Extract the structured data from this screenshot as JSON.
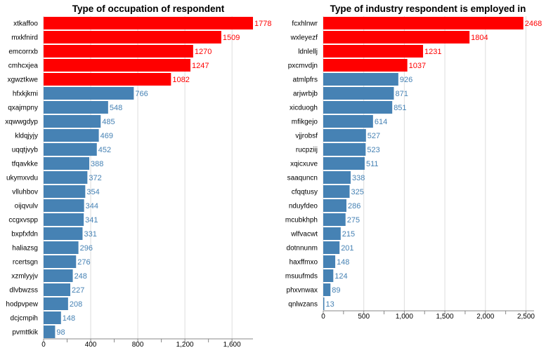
{
  "chart_data": [
    {
      "type": "bar",
      "orientation": "horizontal",
      "title": "Type of occupation of respondent",
      "categories": [
        "xtkaffoo",
        "mxkfnird",
        "emcorrxb",
        "cmhcxjea",
        "xgwztkwe",
        "hfxkjkmi",
        "qxajmpny",
        "xqwwgdyp",
        "kldqjyjy",
        "uqqtjvyb",
        "tfqavkke",
        "ukymxvdu",
        "vlluhbov",
        "oijqvulv",
        "ccgxvspp",
        "bxpfxfdn",
        "haliazsg",
        "rcertsgn",
        "xzmlyyjv",
        "dlvbwzss",
        "hodpvpew",
        "dcjcmpih",
        "pvmttkik"
      ],
      "values": [
        1778,
        1509,
        1270,
        1247,
        1082,
        766,
        548,
        485,
        469,
        452,
        388,
        372,
        354,
        344,
        341,
        331,
        296,
        276,
        248,
        227,
        208,
        148,
        98
      ],
      "highlight_count": 5,
      "xlim": [
        0,
        1778
      ],
      "xticks": [
        0,
        400,
        800,
        1200,
        1600
      ],
      "xtick_labels": [
        "0",
        "400",
        "800",
        "1,200",
        "1,600"
      ],
      "grid": true
    },
    {
      "type": "bar",
      "orientation": "horizontal",
      "title": "Type of industry respondent is employed in",
      "categories": [
        "fcxhlnwr",
        "wxleyezf",
        "ldnlellj",
        "pxcmvdjn",
        "atmlpfrs",
        "arjwrbjb",
        "xicduogh",
        "mfikgejo",
        "vjjrobsf",
        "rucpziij",
        "xqicxuve",
        "saaquncn",
        "cfqqtusy",
        "nduyfdeo",
        "mcubkhph",
        "wlfvacwt",
        "dotnnunm",
        "haxffmxo",
        "msuufmds",
        "phxvnwax",
        "qnlwzans"
      ],
      "values": [
        2468,
        1804,
        1231,
        1037,
        926,
        871,
        851,
        614,
        527,
        523,
        511,
        338,
        325,
        286,
        275,
        215,
        201,
        148,
        124,
        89,
        13
      ],
      "highlight_count": 4,
      "xlim": [
        0,
        2600
      ],
      "xticks": [
        0,
        500,
        1000,
        1500,
        2000,
        2500
      ],
      "xtick_labels": [
        "0",
        "500",
        "1,000",
        "1,500",
        "2,000",
        "2,500"
      ],
      "grid": true
    }
  ],
  "colors": {
    "highlight_bar": "#ff0000",
    "normal_bar": "#4682b4",
    "highlight_label": "#ff0000",
    "normal_label": "#4682b4"
  }
}
